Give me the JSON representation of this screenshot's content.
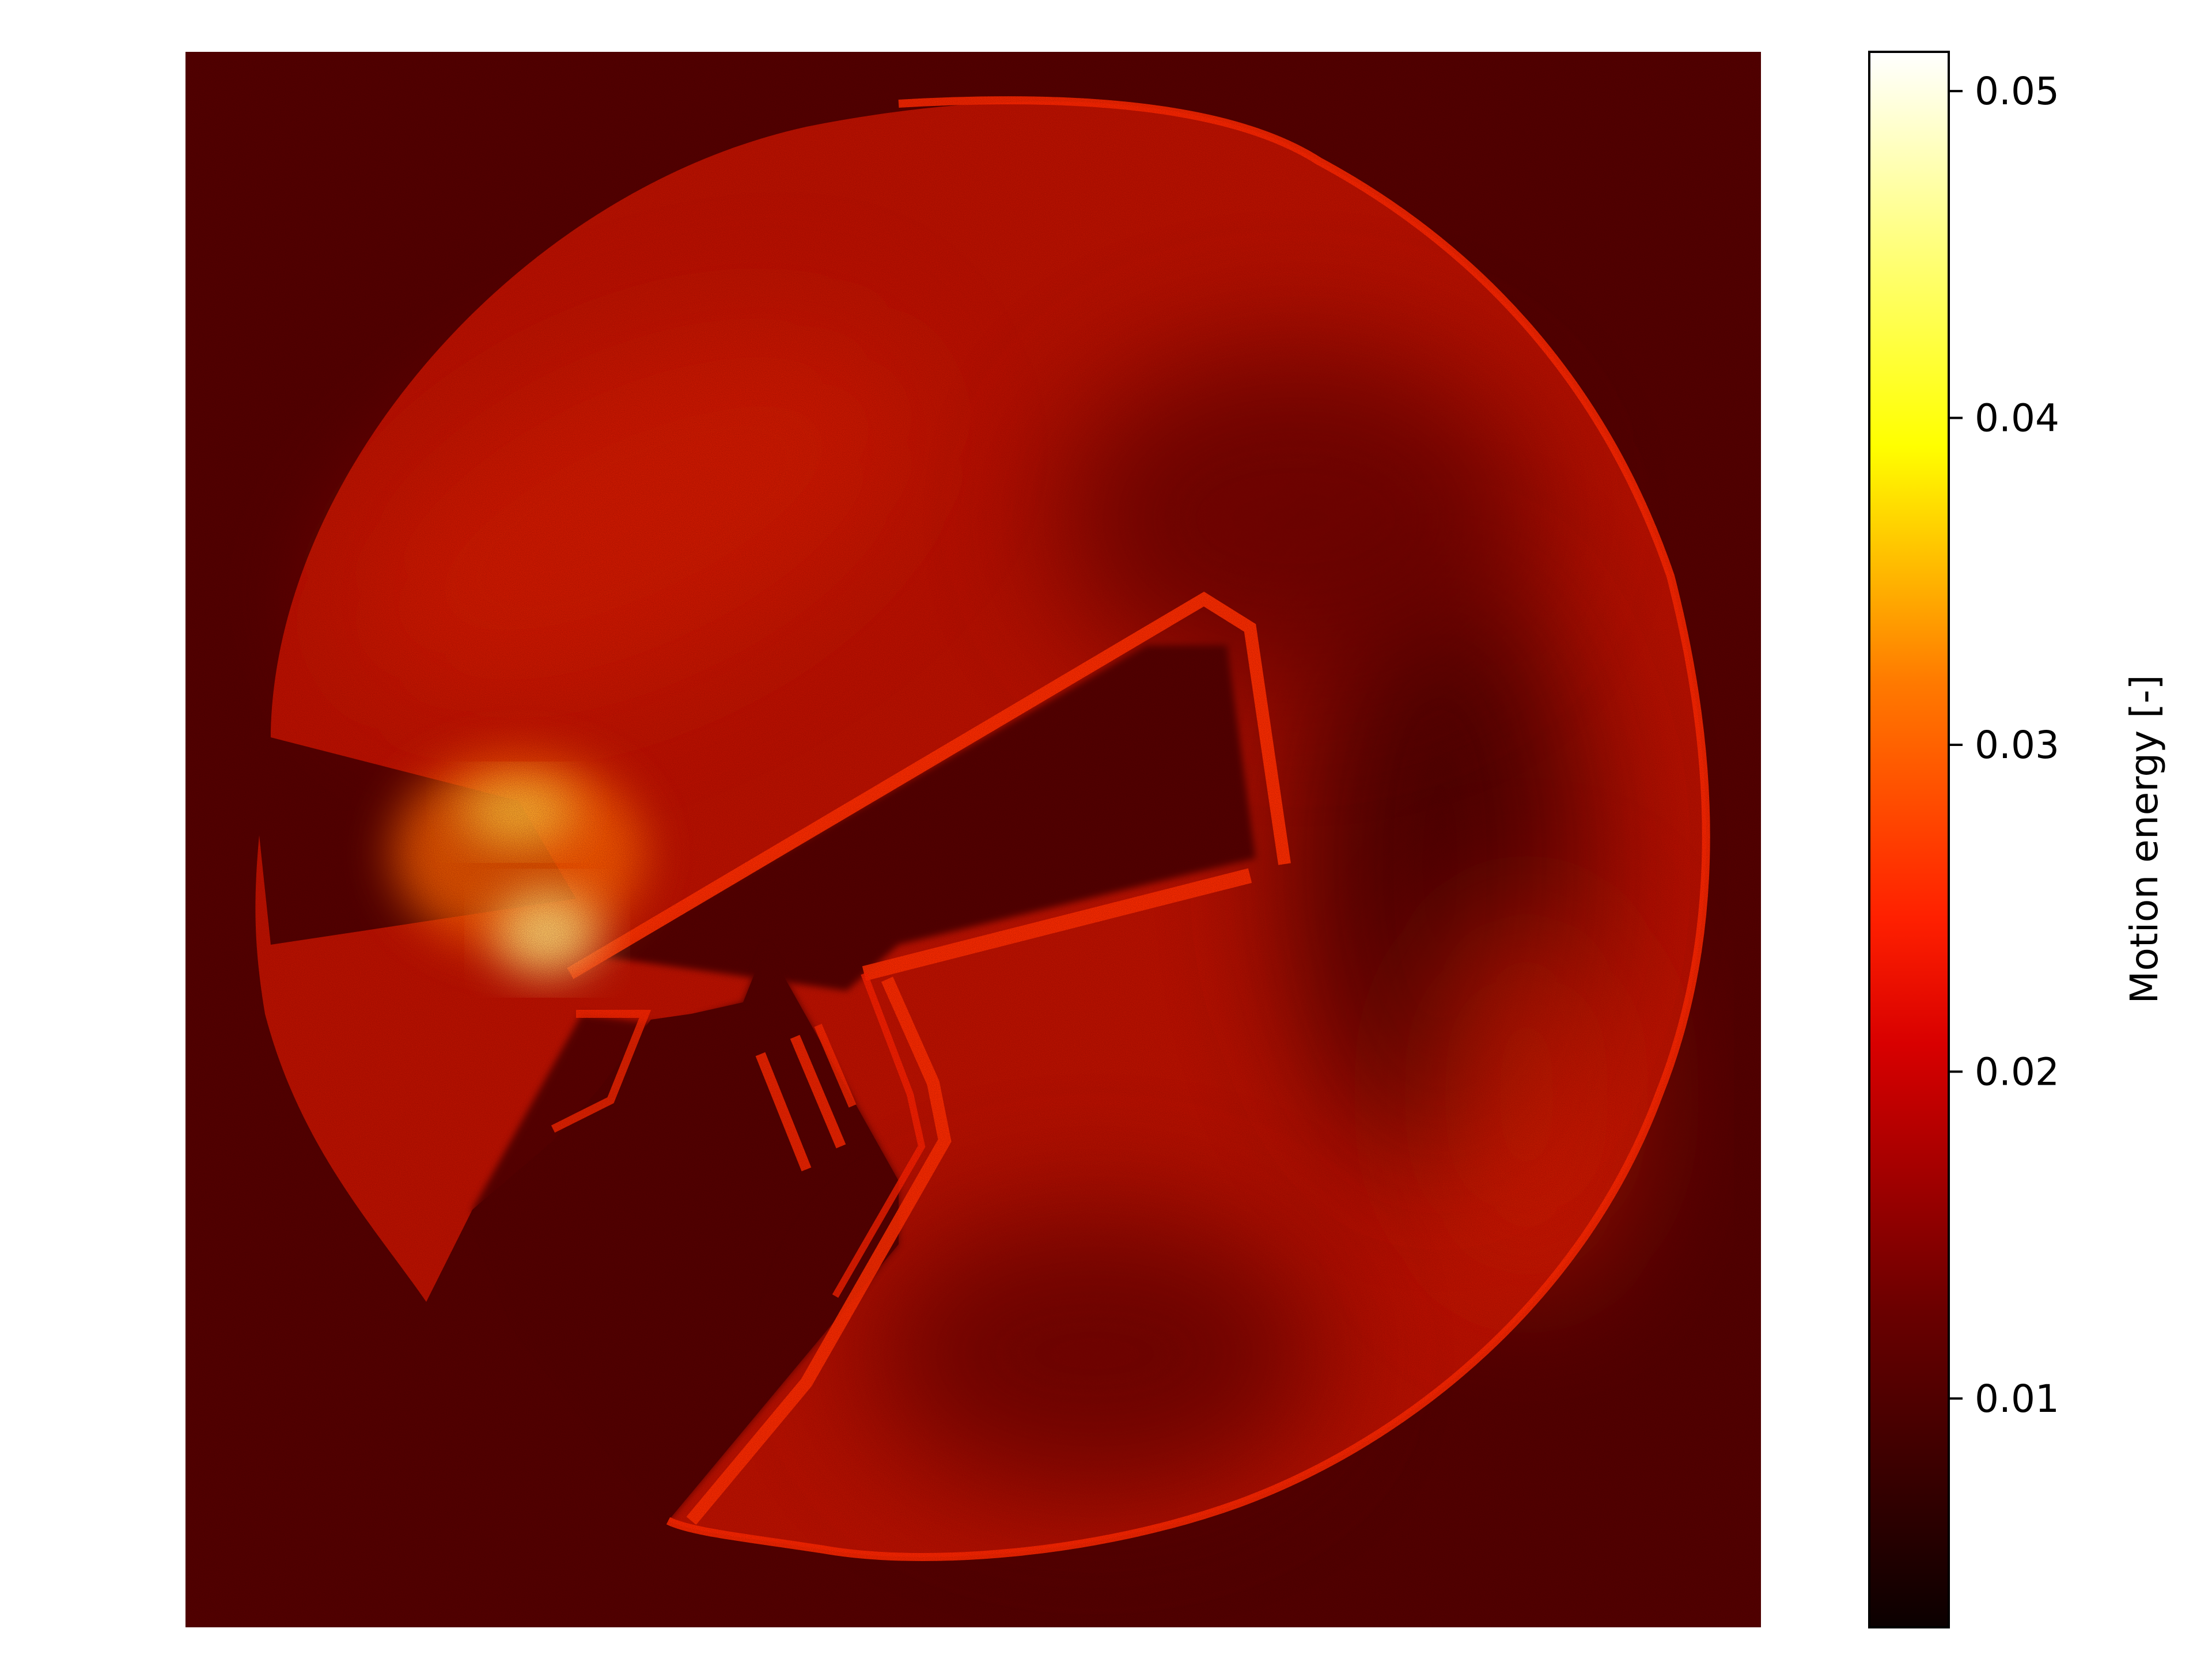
{
  "chart_data": {
    "type": "heatmap",
    "title": "",
    "xlabel": "",
    "ylabel": "",
    "axes_visible": false,
    "colormap": "hot",
    "colorbar": {
      "label": "Motion energy [-]",
      "range": [
        0.003,
        0.0512
      ],
      "ticks": [
        0.01,
        0.02,
        0.03,
        0.04,
        0.05
      ],
      "tick_labels": [
        "0.01",
        "0.02",
        "0.03",
        "0.04",
        "0.05"
      ],
      "placement": "right"
    },
    "description_values": {
      "background_level": 0.006,
      "disc_level": 0.018,
      "rim_level": 0.021,
      "blade_edge_level": 0.024,
      "hotspot_peak": 0.045
    }
  }
}
